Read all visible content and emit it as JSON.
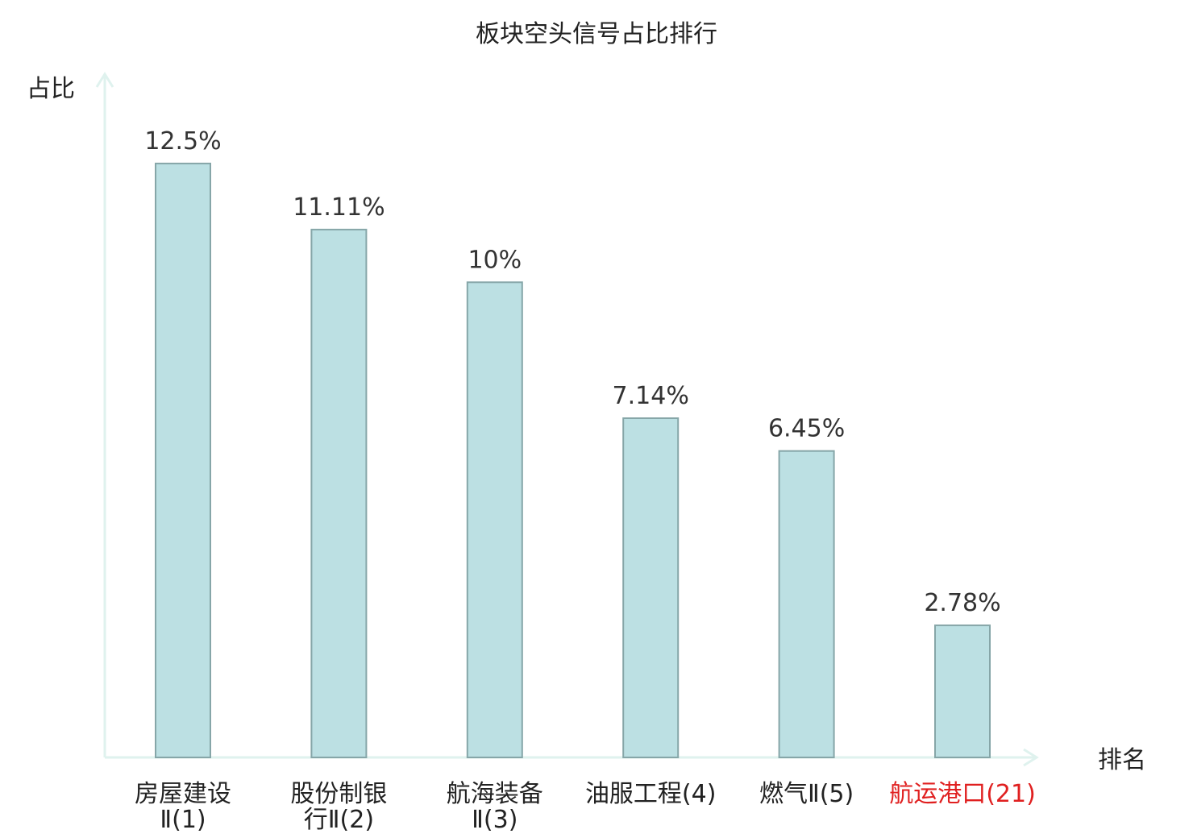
{
  "chart_data": {
    "type": "bar",
    "title": "板块空头信号占比排行",
    "ylabel": "占比",
    "xlabel": "排名",
    "ylim": [
      0,
      14.5
    ],
    "grid": false,
    "categories": [
      {
        "lines": [
          "房屋建设",
          "Ⅱ(1)"
        ],
        "name": "房屋建设Ⅱ",
        "rank": "(1)",
        "highlight": false
      },
      {
        "lines": [
          "股份制银",
          "行Ⅱ(2)"
        ],
        "name": "股份制银行Ⅱ",
        "rank": "(2)",
        "highlight": false
      },
      {
        "lines": [
          "航海装备",
          "Ⅱ(3)"
        ],
        "name": "航海装备Ⅱ",
        "rank": "(3)",
        "highlight": false
      },
      {
        "lines": [
          "油服工程(4)"
        ],
        "name": "油服工程",
        "rank": "(4)",
        "highlight": false
      },
      {
        "lines": [
          "燃气Ⅱ(5)"
        ],
        "name": "燃气Ⅱ",
        "rank": "(5)",
        "highlight": false
      },
      {
        "lines": [
          "航运港口(21)"
        ],
        "name": "航运港口",
        "rank": "(21)",
        "highlight": true
      }
    ],
    "values": [
      12.5,
      11.11,
      10,
      7.14,
      6.45,
      2.78
    ],
    "value_labels": [
      "12.5%",
      "11.11%",
      "10%",
      "7.14%",
      "6.45%",
      "2.78%"
    ]
  },
  "colors": {
    "bar_fill": "#bce0e3",
    "bar_stroke": "#86a6a8",
    "axis": "#dff2ee",
    "highlight": "#e02020"
  }
}
